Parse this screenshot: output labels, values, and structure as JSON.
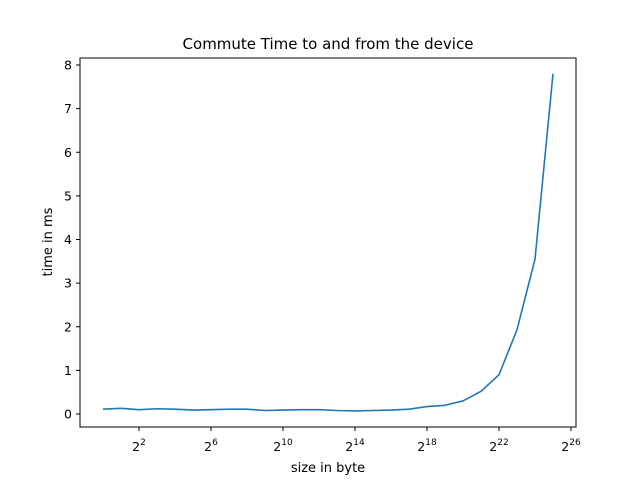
{
  "chart_data": {
    "type": "line",
    "title": "Commute Time to and from the device",
    "xlabel": "size in byte",
    "ylabel": "time in ms",
    "x_scale": "log2",
    "x_tick_base": "2",
    "x_tick_exponents": [
      "2",
      "6",
      "10",
      "14",
      "18",
      "22",
      "26"
    ],
    "y_ticks": [
      "0",
      "1",
      "2",
      "3",
      "4",
      "5",
      "6",
      "7",
      "8"
    ],
    "xlim": [
      1,
      67108864
    ],
    "ylim": [
      -0.3,
      8.2
    ],
    "grid": false,
    "line_color": "#1f77b4",
    "series": [
      {
        "x": [
          1,
          2,
          4,
          8,
          16,
          32,
          64,
          128,
          256,
          512,
          1024,
          2048,
          4096,
          8192,
          16384,
          32768,
          65536,
          131072,
          262144,
          524288,
          1048576,
          2097152,
          4194304,
          8388608,
          16777216,
          33554432
        ],
        "y": [
          0.11,
          0.13,
          0.1,
          0.12,
          0.11,
          0.09,
          0.1,
          0.11,
          0.11,
          0.08,
          0.09,
          0.1,
          0.1,
          0.08,
          0.07,
          0.08,
          0.09,
          0.11,
          0.17,
          0.2,
          0.3,
          0.52,
          0.9,
          1.93,
          3.55,
          7.8
        ]
      }
    ]
  }
}
